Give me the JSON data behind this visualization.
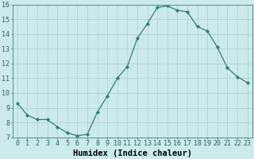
{
  "x": [
    0,
    1,
    2,
    3,
    4,
    5,
    6,
    7,
    8,
    9,
    10,
    11,
    12,
    13,
    14,
    15,
    16,
    17,
    18,
    19,
    20,
    21,
    22,
    23
  ],
  "y": [
    9.3,
    8.5,
    8.2,
    8.2,
    7.7,
    7.3,
    7.1,
    7.2,
    8.7,
    9.8,
    11.0,
    11.8,
    13.7,
    14.7,
    15.8,
    15.9,
    15.6,
    15.5,
    14.5,
    14.2,
    13.1,
    11.7,
    11.1,
    10.7
  ],
  "xlabel": "Humidex (Indice chaleur)",
  "line_color": "#2e7f6f",
  "marker": "D",
  "marker_size": 2.2,
  "bg_color": "#cceaea",
  "grid_color": "#aacccc",
  "xlim": [
    -0.5,
    23.5
  ],
  "ylim": [
    7,
    16
  ],
  "yticks": [
    7,
    8,
    9,
    10,
    11,
    12,
    13,
    14,
    15,
    16
  ],
  "xticks": [
    0,
    1,
    2,
    3,
    4,
    5,
    6,
    7,
    8,
    9,
    10,
    11,
    12,
    13,
    14,
    15,
    16,
    17,
    18,
    19,
    20,
    21,
    22,
    23
  ],
  "xtick_labels": [
    "0",
    "1",
    "2",
    "3",
    "4",
    "5",
    "6",
    "7",
    "8",
    "9",
    "10",
    "11",
    "12",
    "13",
    "14",
    "15",
    "16",
    "17",
    "18",
    "19",
    "20",
    "21",
    "22",
    "23"
  ],
  "xlabel_fontsize": 7.5,
  "tick_fontsize": 6.0
}
